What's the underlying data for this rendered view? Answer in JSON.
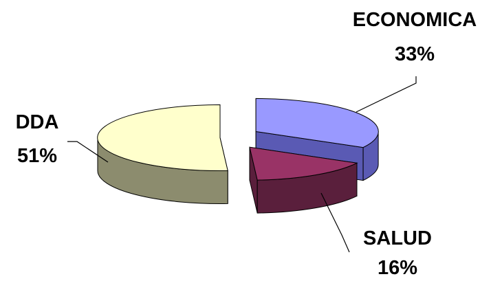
{
  "chart_data": {
    "type": "pie",
    "style": "3d-exploded",
    "title": "",
    "labels_outside": true,
    "slices": [
      {
        "label": "ECONOMICA",
        "percent_label": "33%",
        "value": 33,
        "color": "#9999ff",
        "side_color": "#5a5ab4"
      },
      {
        "label": "SALUD",
        "percent_label": "16%",
        "value": 16,
        "color": "#993366",
        "side_color": "#5a1f3c"
      },
      {
        "label": "DDA",
        "percent_label": "51%",
        "value": 51,
        "color": "#ffffcc",
        "side_color": "#8c8c6e"
      }
    ]
  }
}
